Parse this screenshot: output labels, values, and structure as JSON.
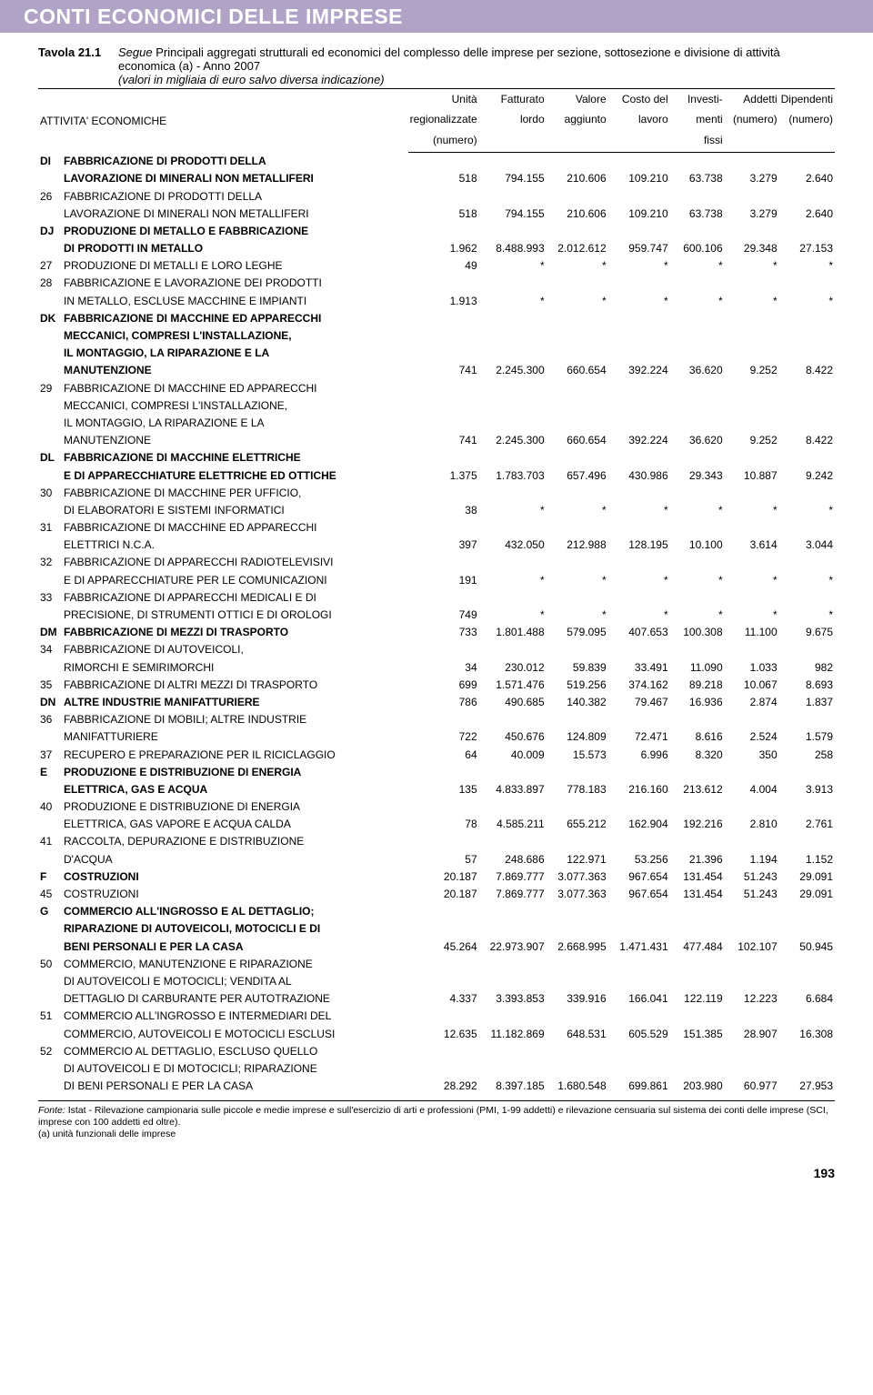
{
  "header": {
    "title": "CONTI ECONOMICI DELLE IMPRESE"
  },
  "tavola": {
    "label": "Tavola 21.1",
    "segue": "Segue",
    "desc_main": " Principali aggregati strutturali ed economici del complesso delle imprese per sezione, sottosezione e divisione di attività economica (a) - Anno 2007",
    "desc_sub": "(valori in migliaia di euro salvo diversa indicazione)"
  },
  "table": {
    "columns": {
      "attivita": "ATTIVITA' ECONOMICHE",
      "unita_l1": "Unità",
      "unita_l2": "regionalizzate",
      "unita_l3": "(numero)",
      "fatt_l1": "Fatturato",
      "fatt_l2": "lordo",
      "valore_l1": "Valore",
      "valore_l2": "aggiunto",
      "costo_l1": "Costo del",
      "costo_l2": "lavoro",
      "invest_l1": "Investi-",
      "invest_l2": "menti",
      "invest_l3": "fissi",
      "addetti_l1": "Addetti",
      "addetti_l2": "(numero)",
      "dipend_l1": "Dipendenti",
      "dipend_l2": "(numero)"
    },
    "rows": [
      {
        "bold": true,
        "code": "DI",
        "lines": [
          "FABBRICAZIONE DI PRODOTTI DELLA",
          "LAVORAZIONE DI MINERALI NON METALLIFERI"
        ],
        "vals": [
          "518",
          "794.155",
          "210.606",
          "109.210",
          "63.738",
          "3.279",
          "2.640"
        ]
      },
      {
        "bold": false,
        "code": "26",
        "lines": [
          "FABBRICAZIONE DI PRODOTTI DELLA",
          "LAVORAZIONE DI MINERALI NON METALLIFERI"
        ],
        "vals": [
          "518",
          "794.155",
          "210.606",
          "109.210",
          "63.738",
          "3.279",
          "2.640"
        ]
      },
      {
        "bold": true,
        "code": "DJ",
        "lines": [
          "PRODUZIONE DI METALLO E FABBRICAZIONE",
          "DI PRODOTTI IN METALLO"
        ],
        "vals": [
          "1.962",
          "8.488.993",
          "2.012.612",
          "959.747",
          "600.106",
          "29.348",
          "27.153"
        ]
      },
      {
        "bold": false,
        "code": "27",
        "lines": [
          "PRODUZIONE DI METALLI E LORO LEGHE"
        ],
        "vals": [
          "49",
          "*",
          "*",
          "*",
          "*",
          "*",
          "*"
        ]
      },
      {
        "bold": false,
        "code": "28",
        "lines": [
          "FABBRICAZIONE E LAVORAZIONE DEI PRODOTTI",
          "IN METALLO, ESCLUSE MACCHINE E IMPIANTI"
        ],
        "vals": [
          "1.913",
          "*",
          "*",
          "*",
          "*",
          "*",
          "*"
        ]
      },
      {
        "bold": true,
        "code": "DK",
        "lines": [
          "FABBRICAZIONE DI MACCHINE ED APPARECCHI",
          "MECCANICI, COMPRESI L'INSTALLAZIONE,",
          "IL MONTAGGIO, LA RIPARAZIONE E LA",
          "MANUTENZIONE"
        ],
        "vals": [
          "741",
          "2.245.300",
          "660.654",
          "392.224",
          "36.620",
          "9.252",
          "8.422"
        ]
      },
      {
        "bold": false,
        "code": "29",
        "lines": [
          "FABBRICAZIONE DI MACCHINE ED APPARECCHI",
          "MECCANICI, COMPRESI L'INSTALLAZIONE,",
          "IL MONTAGGIO, LA RIPARAZIONE E LA",
          "MANUTENZIONE"
        ],
        "vals": [
          "741",
          "2.245.300",
          "660.654",
          "392.224",
          "36.620",
          "9.252",
          "8.422"
        ]
      },
      {
        "bold": true,
        "code": "DL",
        "lines": [
          "FABBRICAZIONE DI MACCHINE ELETTRICHE",
          "E DI APPARECCHIATURE ELETTRICHE ED OTTICHE"
        ],
        "vals": [
          "1.375",
          "1.783.703",
          "657.496",
          "430.986",
          "29.343",
          "10.887",
          "9.242"
        ]
      },
      {
        "bold": false,
        "code": "30",
        "lines": [
          "FABBRICAZIONE DI MACCHINE PER UFFICIO,",
          "DI ELABORATORI E SISTEMI INFORMATICI"
        ],
        "vals": [
          "38",
          "*",
          "*",
          "*",
          "*",
          "*",
          "*"
        ]
      },
      {
        "bold": false,
        "code": "31",
        "lines": [
          "FABBRICAZIONE DI MACCHINE ED APPARECCHI",
          "ELETTRICI N.C.A."
        ],
        "vals": [
          "397",
          "432.050",
          "212.988",
          "128.195",
          "10.100",
          "3.614",
          "3.044"
        ]
      },
      {
        "bold": false,
        "code": "32",
        "lines": [
          "FABBRICAZIONE DI APPARECCHI RADIOTELEVISIVI",
          "E DI APPARECCHIATURE PER LE COMUNICAZIONI"
        ],
        "vals": [
          "191",
          "*",
          "*",
          "*",
          "*",
          "*",
          "*"
        ]
      },
      {
        "bold": false,
        "code": "33",
        "lines": [
          "FABBRICAZIONE DI APPARECCHI MEDICALI E DI",
          "PRECISIONE, DI STRUMENTI OTTICI E DI OROLOGI"
        ],
        "vals": [
          "749",
          "*",
          "*",
          "*",
          "*",
          "*",
          "*"
        ]
      },
      {
        "bold": true,
        "code": "DM",
        "lines": [
          "FABBRICAZIONE DI MEZZI DI TRASPORTO"
        ],
        "vals": [
          "733",
          "1.801.488",
          "579.095",
          "407.653",
          "100.308",
          "11.100",
          "9.675"
        ]
      },
      {
        "bold": false,
        "code": "34",
        "lines": [
          "FABBRICAZIONE DI AUTOVEICOLI,",
          "RIMORCHI E SEMIRIMORCHI"
        ],
        "vals": [
          "34",
          "230.012",
          "59.839",
          "33.491",
          "11.090",
          "1.033",
          "982"
        ]
      },
      {
        "bold": false,
        "code": "35",
        "lines": [
          "FABBRICAZIONE DI ALTRI MEZZI DI TRASPORTO"
        ],
        "vals": [
          "699",
          "1.571.476",
          "519.256",
          "374.162",
          "89.218",
          "10.067",
          "8.693"
        ]
      },
      {
        "bold": true,
        "code": "DN",
        "lines": [
          "ALTRE INDUSTRIE MANIFATTURIERE"
        ],
        "vals": [
          "786",
          "490.685",
          "140.382",
          "79.467",
          "16.936",
          "2.874",
          "1.837"
        ]
      },
      {
        "bold": false,
        "code": "36",
        "lines": [
          "FABBRICAZIONE DI MOBILI; ALTRE INDUSTRIE",
          "MANIFATTURIERE"
        ],
        "vals": [
          "722",
          "450.676",
          "124.809",
          "72.471",
          "8.616",
          "2.524",
          "1.579"
        ]
      },
      {
        "bold": false,
        "code": "37",
        "lines": [
          "RECUPERO E PREPARAZIONE PER IL RICICLAGGIO"
        ],
        "vals": [
          "64",
          "40.009",
          "15.573",
          "6.996",
          "8.320",
          "350",
          "258"
        ]
      },
      {
        "bold": true,
        "code": "E",
        "lines": [
          "PRODUZIONE E DISTRIBUZIONE DI ENERGIA",
          "ELETTRICA, GAS E ACQUA"
        ],
        "vals": [
          "135",
          "4.833.897",
          "778.183",
          "216.160",
          "213.612",
          "4.004",
          "3.913"
        ]
      },
      {
        "bold": false,
        "code": "40",
        "lines": [
          "PRODUZIONE E DISTRIBUZIONE DI ENERGIA",
          "ELETTRICA, GAS VAPORE E ACQUA CALDA"
        ],
        "vals": [
          "78",
          "4.585.211",
          "655.212",
          "162.904",
          "192.216",
          "2.810",
          "2.761"
        ]
      },
      {
        "bold": false,
        "code": "41",
        "lines": [
          "RACCOLTA, DEPURAZIONE E DISTRIBUZIONE",
          "D'ACQUA"
        ],
        "vals": [
          "57",
          "248.686",
          "122.971",
          "53.256",
          "21.396",
          "1.194",
          "1.152"
        ]
      },
      {
        "bold": true,
        "code": "F",
        "lines": [
          "COSTRUZIONI"
        ],
        "vals": [
          "20.187",
          "7.869.777",
          "3.077.363",
          "967.654",
          "131.454",
          "51.243",
          "29.091"
        ]
      },
      {
        "bold": false,
        "code": "45",
        "lines": [
          "COSTRUZIONI"
        ],
        "vals": [
          "20.187",
          "7.869.777",
          "3.077.363",
          "967.654",
          "131.454",
          "51.243",
          "29.091"
        ]
      },
      {
        "bold": true,
        "code": "G",
        "lines": [
          "COMMERCIO ALL'INGROSSO E AL DETTAGLIO;",
          "RIPARAZIONE DI AUTOVEICOLI, MOTOCICLI E DI",
          "BENI PERSONALI E PER LA CASA"
        ],
        "vals": [
          "45.264",
          "22.973.907",
          "2.668.995",
          "1.471.431",
          "477.484",
          "102.107",
          "50.945"
        ]
      },
      {
        "bold": false,
        "code": "50",
        "lines": [
          "COMMERCIO, MANUTENZIONE E RIPARAZIONE",
          "DI AUTOVEICOLI E MOTOCICLI; VENDITA AL",
          "DETTAGLIO DI CARBURANTE PER AUTOTRAZIONE"
        ],
        "vals": [
          "4.337",
          "3.393.853",
          "339.916",
          "166.041",
          "122.119",
          "12.223",
          "6.684"
        ]
      },
      {
        "bold": false,
        "code": "51",
        "lines": [
          "COMMERCIO ALL'INGROSSO E INTERMEDIARI DEL",
          "COMMERCIO, AUTOVEICOLI E MOTOCICLI ESCLUSI"
        ],
        "vals": [
          "12.635",
          "11.182.869",
          "648.531",
          "605.529",
          "151.385",
          "28.907",
          "16.308"
        ]
      },
      {
        "bold": false,
        "code": "52",
        "lines": [
          "COMMERCIO AL DETTAGLIO, ESCLUSO QUELLO",
          "DI AUTOVEICOLI E DI MOTOCICLI; RIPARAZIONE",
          "DI BENI PERSONALI E PER LA CASA"
        ],
        "vals": [
          "28.292",
          "8.397.185",
          "1.680.548",
          "699.861",
          "203.980",
          "60.977",
          "27.953"
        ]
      }
    ]
  },
  "footnote": {
    "fonte_label": "Fonte:",
    "fonte_text": " Istat - Rilevazione campionaria sulle piccole e medie imprese e sull'esercizio di arti e professioni (PMI, 1-99 addetti) e rilevazione censuaria sul sistema dei conti delle imprese (SCI, imprese con 100 addetti ed oltre).",
    "note_a": "(a) unità funzionali delle imprese"
  },
  "page_number": "193"
}
